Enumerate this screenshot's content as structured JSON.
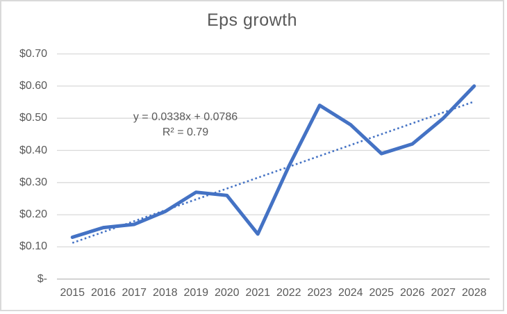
{
  "chart": {
    "title": "Eps growth",
    "annotation": {
      "equation": "y = 0.0338x + 0.0786",
      "r_squared": "R² = 0.79"
    }
  },
  "chart_data": {
    "type": "line",
    "title": "Eps growth",
    "categories": [
      "2015",
      "2016",
      "2017",
      "2018",
      "2019",
      "2020",
      "2021",
      "2022",
      "2023",
      "2024",
      "2025",
      "2026",
      "2027",
      "2028"
    ],
    "series": [
      {
        "name": "EPS",
        "values": [
          0.13,
          0.16,
          0.17,
          0.21,
          0.27,
          0.26,
          0.14,
          0.35,
          0.54,
          0.48,
          0.39,
          0.42,
          0.5,
          0.6
        ]
      }
    ],
    "trendline": {
      "type": "linear",
      "slope": 0.0338,
      "intercept": 0.0786,
      "equation": "y = 0.0338x + 0.0786",
      "r_squared": 0.79,
      "style": "dotted"
    },
    "ylim": [
      0,
      0.7
    ],
    "ytick_interval": 0.1,
    "ytick_labels": [
      "$-",
      "$0.10",
      "$0.20",
      "$0.30",
      "$0.40",
      "$0.50",
      "$0.60",
      "$0.70"
    ],
    "xlabel": "",
    "ylabel": "",
    "grid": true,
    "legend": "none"
  },
  "colors": {
    "series": "#4472C4",
    "trendline": "#4472C4",
    "gridline": "#D9D9D9",
    "axis_line": "#BFBFBF",
    "text": "#595959",
    "background": "#FFFFFF",
    "border": "#D9D9D9"
  }
}
